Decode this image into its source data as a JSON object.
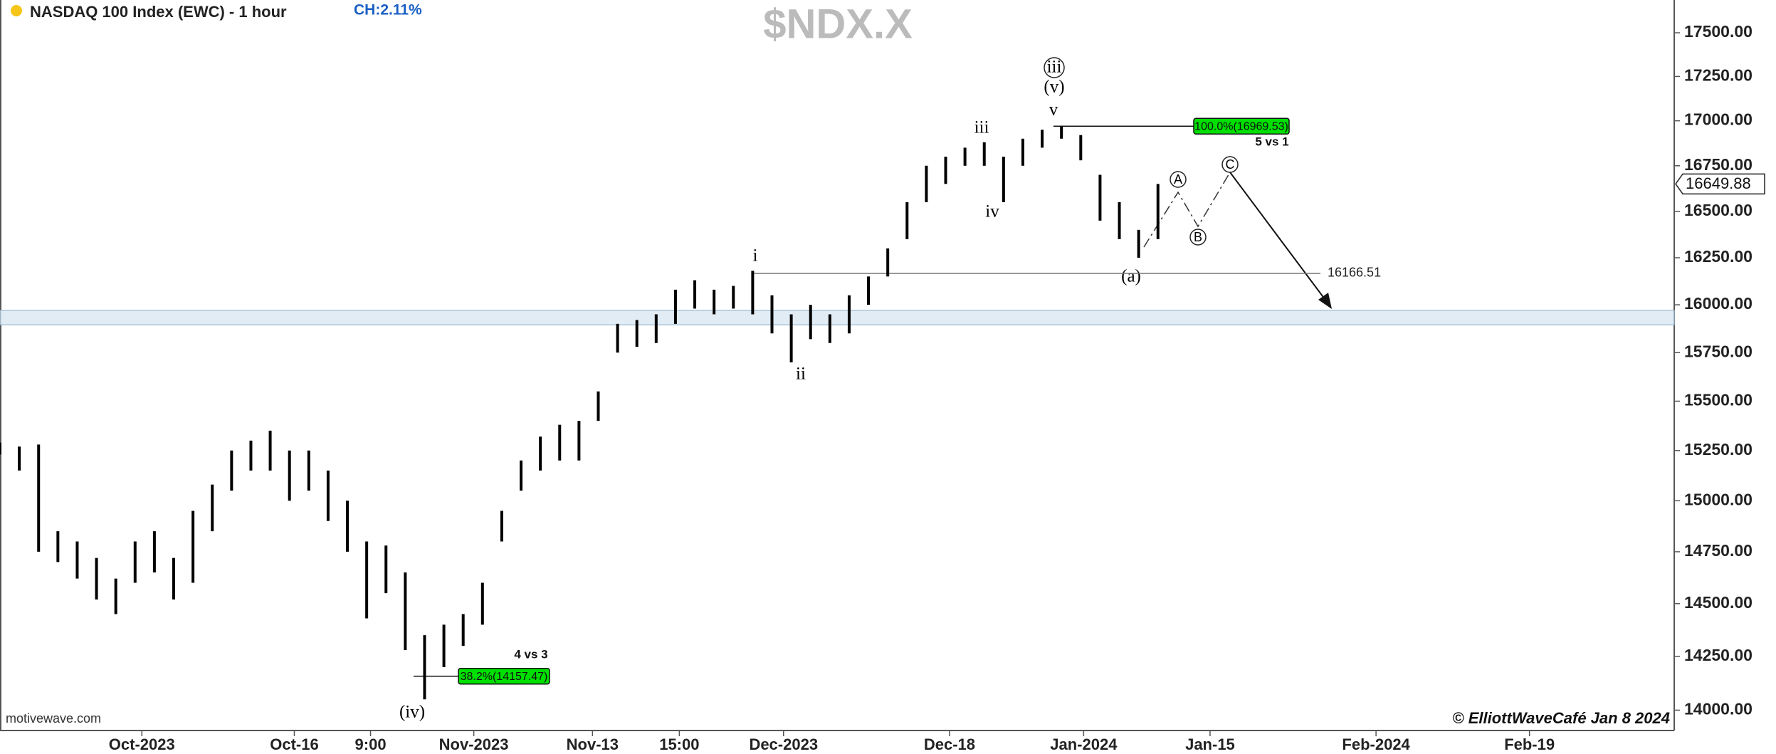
{
  "chart_data": {
    "type": "ohlc",
    "title": "NASDAQ 100 Index (EWC) - 1 hour",
    "subtitle": "CH:2.11%",
    "symbol": "$NDX.X",
    "color": "#000000",
    "log": true,
    "x": [
      0,
      2,
      4,
      6,
      8,
      10,
      12,
      14,
      16,
      18,
      20,
      22,
      24,
      26,
      28,
      30,
      32,
      34,
      36,
      38,
      40,
      42,
      44,
      46,
      48,
      50,
      52,
      54,
      56,
      58,
      60,
      62,
      64,
      66,
      68,
      70,
      72,
      74,
      76,
      78,
      80,
      82,
      84,
      86,
      88,
      90,
      92,
      94,
      96,
      98,
      100,
      102,
      104,
      106,
      108,
      110,
      112,
      114,
      116,
      118,
      120
    ],
    "high": [
      15290,
      15270,
      15280,
      14850,
      14800,
      14720,
      14620,
      14800,
      14850,
      14720,
      14950,
      15080,
      15250,
      15300,
      15350,
      15250,
      15250,
      15150,
      15000,
      14800,
      14780,
      14650,
      14350,
      14400,
      14450,
      14600,
      14950,
      15200,
      15320,
      15380,
      15400,
      15550,
      15900,
      15920,
      15950,
      16080,
      16130,
      16080,
      16100,
      16180,
      16050,
      15950,
      16000,
      15950,
      16050,
      16150,
      16300,
      16550,
      16750,
      16800,
      16850,
      16880,
      16800,
      16900,
      16950,
      16970,
      16920,
      16700,
      16550,
      16400,
      16650
    ],
    "low": [
      15230,
      15150,
      14750,
      14700,
      14620,
      14520,
      14450,
      14600,
      14650,
      14520,
      14600,
      14850,
      15050,
      15150,
      15150,
      15000,
      15050,
      14900,
      14750,
      14430,
      14550,
      14280,
      14050,
      14200,
      14300,
      14400,
      14800,
      15050,
      15150,
      15200,
      15200,
      15400,
      15750,
      15780,
      15800,
      15900,
      15980,
      15950,
      15980,
      15950,
      15850,
      15700,
      15820,
      15800,
      15850,
      16000,
      16150,
      16350,
      16550,
      16650,
      16750,
      16750,
      16550,
      16750,
      16850,
      16900,
      16780,
      16450,
      16350,
      16250,
      16350
    ],
    "ylim": [
      13900,
      17690
    ],
    "yticks": [
      {
        "value": 14000,
        "label": "14000.00"
      },
      {
        "value": 14250,
        "label": "14250.00"
      },
      {
        "value": 14500,
        "label": "14500.00"
      },
      {
        "value": 14750,
        "label": "14750.00"
      },
      {
        "value": 15000,
        "label": "15000.00"
      },
      {
        "value": 15250,
        "label": "15250.00"
      },
      {
        "value": 15500,
        "label": "15500.00"
      },
      {
        "value": 15750,
        "label": "15750.00"
      },
      {
        "value": 16000,
        "label": "16000.00"
      },
      {
        "value": 16250,
        "label": "16250.00"
      },
      {
        "value": 16500,
        "label": "16500.00"
      },
      {
        "value": 16750,
        "label": "16750.00"
      },
      {
        "value": 17000,
        "label": "17000.00"
      },
      {
        "value": 17250,
        "label": "17250.00"
      },
      {
        "value": 17500,
        "label": "17500.00"
      }
    ],
    "xlim": [
      0,
      173.5
    ],
    "xticks": [
      {
        "value": 14.7,
        "label": "Oct-2023"
      },
      {
        "value": 30.5,
        "label": "Oct-16"
      },
      {
        "value": 38.4,
        "label": "9:00"
      },
      {
        "value": 49.1,
        "label": "Nov-2023"
      },
      {
        "value": 61.4,
        "label": "Nov-13"
      },
      {
        "value": 70.4,
        "label": "15:00"
      },
      {
        "value": 81.2,
        "label": "Dec-2023"
      },
      {
        "value": 98.4,
        "label": "Dec-18"
      },
      {
        "value": 112.3,
        "label": "Jan-2024"
      },
      {
        "value": 125.4,
        "label": "Jan-15"
      },
      {
        "value": 142.6,
        "label": "Feb-2024"
      },
      {
        "value": 158.5,
        "label": "Feb-19"
      }
    ],
    "last_price": 16649.88,
    "zone": [
      15895,
      15971
    ],
    "levels": [
      {
        "value": 16969.53,
        "label": "100.0%(16969.53)"
      },
      {
        "value": 14157.47,
        "label": "38.2%(14157.47)"
      },
      16166.51
    ],
    "wave_labels": [
      "iii",
      "(v)",
      "v",
      "iii",
      "iv",
      "i",
      "ii",
      "(iv)",
      "(a)",
      "A",
      "B",
      "C"
    ],
    "notes": [
      "5 vs 1",
      "4 vs 3"
    ],
    "source": "motivewave.com",
    "copyright": "© ElliottWaveCafé Jan 8 2024"
  }
}
